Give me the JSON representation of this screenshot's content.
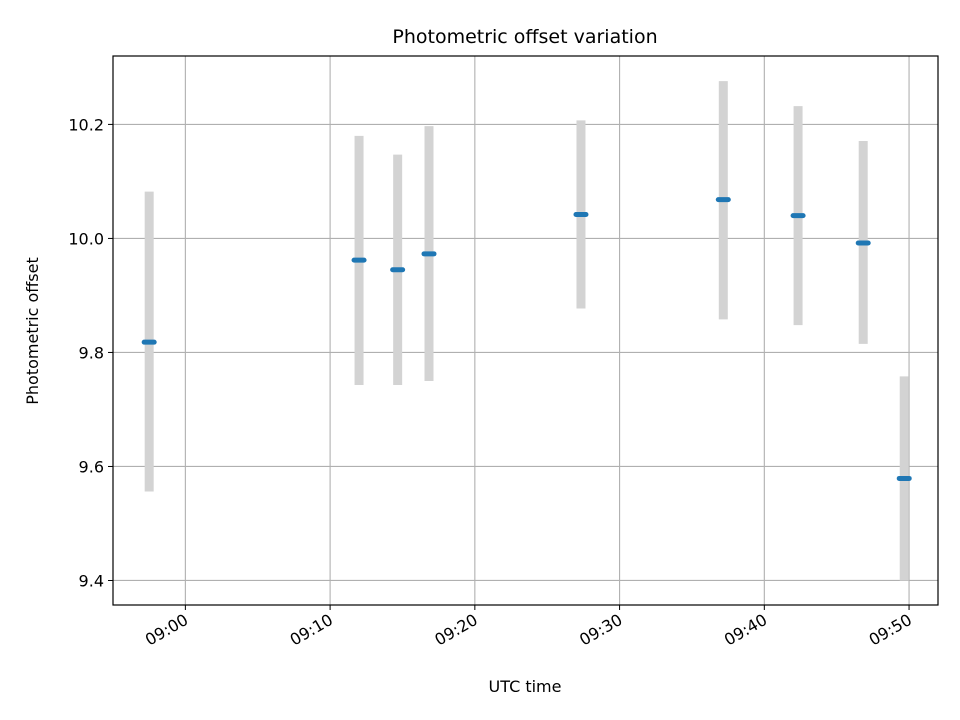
{
  "chart_data": {
    "type": "scatter",
    "title": "Photometric offset variation",
    "xlabel": "UTC time",
    "ylabel": "Photometric offset",
    "xlim": [
      "08:55",
      "09:52"
    ],
    "ylim": [
      9.357,
      10.32
    ],
    "x_ticks": [
      "09:00",
      "09:10",
      "09:20",
      "09:30",
      "09:40",
      "09:50"
    ],
    "y_ticks": [
      "9.4",
      "9.6",
      "9.8",
      "10.0",
      "10.2"
    ],
    "grid": true,
    "point_color": "#1f77b4",
    "errorbar_color": "#d3d3d3",
    "points": [
      {
        "x": "08:57:30",
        "y": 9.818,
        "yerr_low": 9.556,
        "yerr_high": 10.082
      },
      {
        "x": "09:12:00",
        "y": 9.962,
        "yerr_low": 9.743,
        "yerr_high": 10.18
      },
      {
        "x": "09:14:40",
        "y": 9.945,
        "yerr_low": 9.743,
        "yerr_high": 10.147
      },
      {
        "x": "09:16:50",
        "y": 9.973,
        "yerr_low": 9.75,
        "yerr_high": 10.197
      },
      {
        "x": "09:27:20",
        "y": 10.042,
        "yerr_low": 9.877,
        "yerr_high": 10.207
      },
      {
        "x": "09:37:10",
        "y": 10.068,
        "yerr_low": 9.858,
        "yerr_high": 10.276
      },
      {
        "x": "09:42:20",
        "y": 10.04,
        "yerr_low": 9.848,
        "yerr_high": 10.232
      },
      {
        "x": "09:46:50",
        "y": 9.992,
        "yerr_low": 9.815,
        "yerr_high": 10.171
      },
      {
        "x": "09:49:40",
        "y": 9.579,
        "yerr_low": 9.4,
        "yerr_high": 9.758
      }
    ]
  }
}
